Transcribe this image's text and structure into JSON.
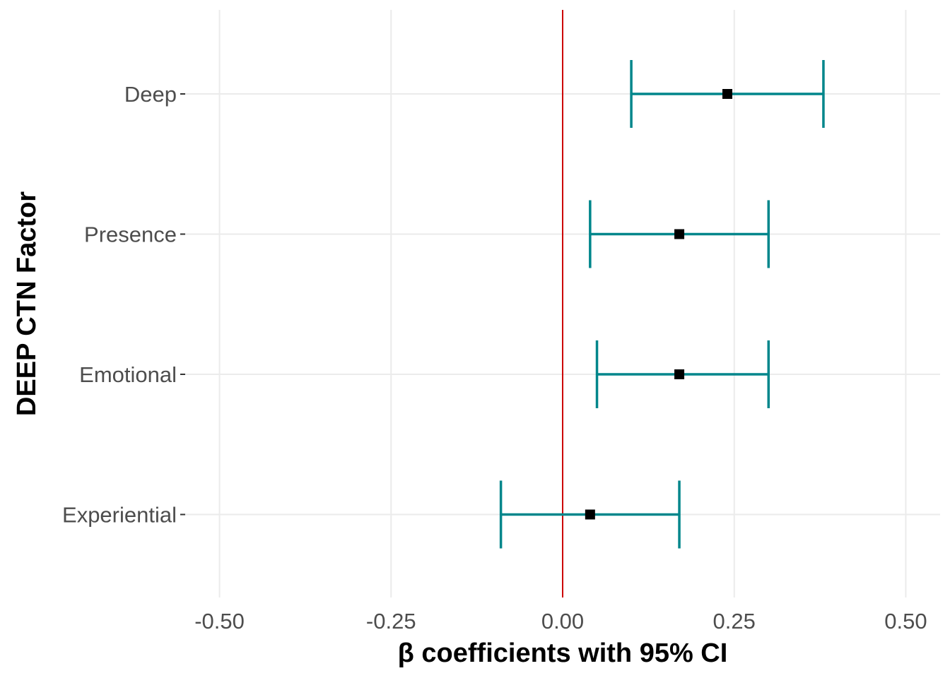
{
  "chart_data": {
    "type": "forest",
    "title": "",
    "xlabel": "β coefficients with 95% CI",
    "ylabel": "DEEP CTN Factor",
    "xlim": [
      -0.55,
      0.55
    ],
    "x_ticks": [
      -0.5,
      -0.25,
      0.0,
      0.25,
      0.5
    ],
    "x_tick_labels": [
      "-0.50",
      "-0.25",
      "0.00",
      "0.25",
      "0.50"
    ],
    "reference_line": 0.0,
    "categories": [
      "Deep",
      "Presence",
      "Emotional",
      "Experiential"
    ],
    "estimates": [
      0.24,
      0.17,
      0.17,
      0.04
    ],
    "ci_lower": [
      0.1,
      0.04,
      0.05,
      -0.09
    ],
    "ci_upper": [
      0.38,
      0.3,
      0.3,
      0.17
    ],
    "grid": true,
    "colors": {
      "ci": "#00868b",
      "point": "#000000",
      "reference": "#cc0000",
      "grid": "#ebebeb"
    }
  }
}
